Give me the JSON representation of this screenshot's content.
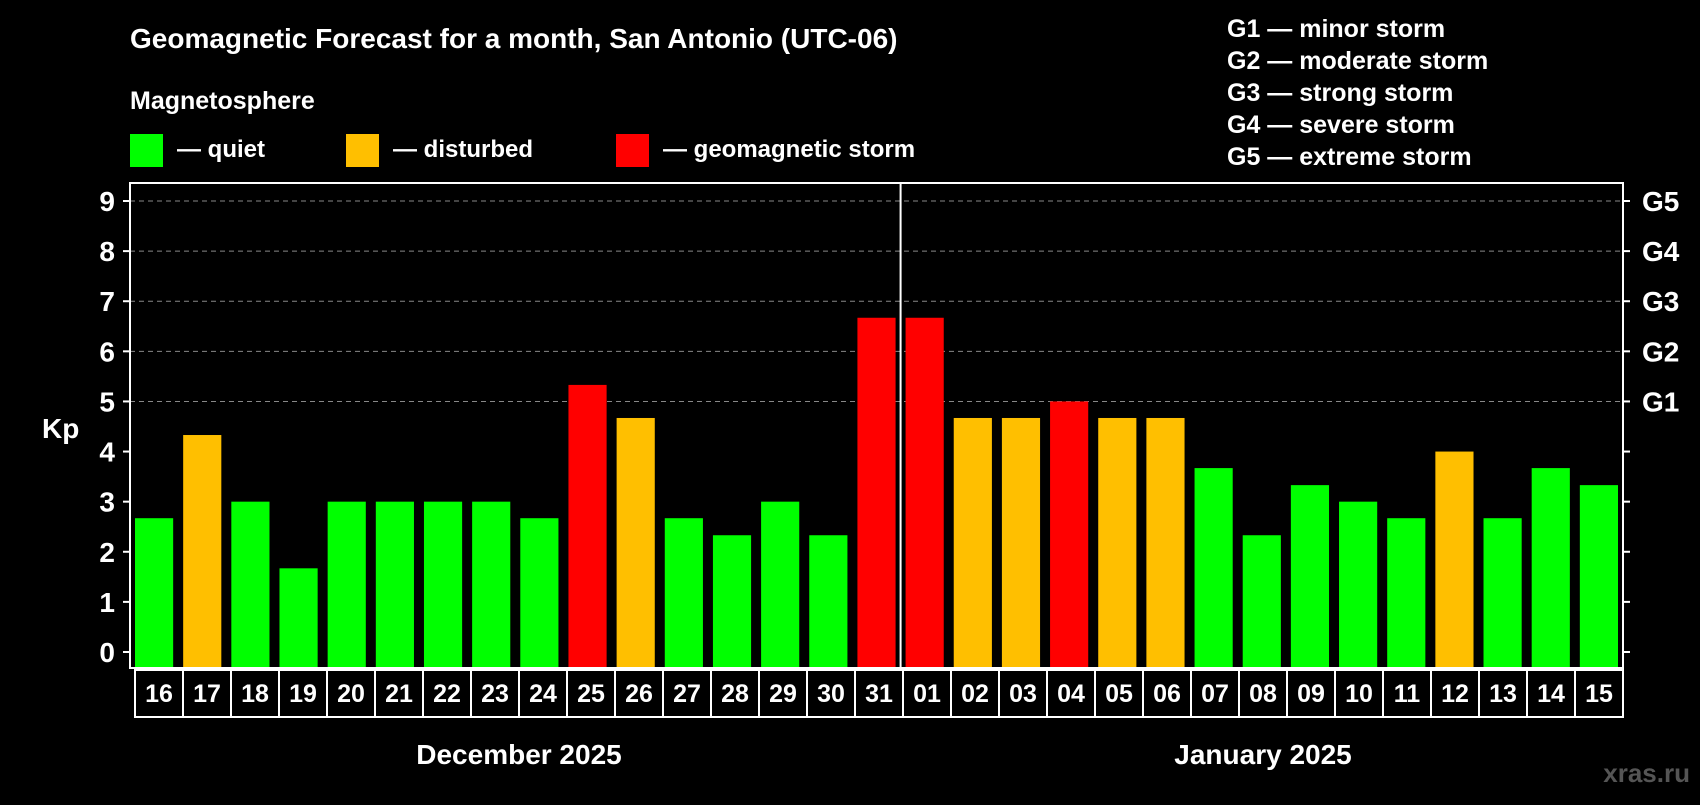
{
  "title": "Geomagnetic Forecast for a month, San Antonio (UTC-06)",
  "legend": {
    "heading": "Magnetosphere",
    "items": [
      {
        "label": "— quiet",
        "color": "#00ff00"
      },
      {
        "label": "— disturbed",
        "color": "#ffbf00"
      },
      {
        "label": "— geomagnetic storm",
        "color": "#ff0000"
      }
    ]
  },
  "storm_scale": [
    "G1 — minor storm",
    "G2 — moderate storm",
    "G3 — strong storm",
    "G4 — severe storm",
    "G5 — extreme storm"
  ],
  "watermark": "xras.ru",
  "chart_data": {
    "type": "bar",
    "ylabel": "Kp",
    "ylim": [
      0,
      9
    ],
    "y_ticks": [
      0,
      1,
      2,
      3,
      4,
      5,
      6,
      7,
      8,
      9
    ],
    "right_axis_labels": [
      {
        "y": 5,
        "label": "G1"
      },
      {
        "y": 6,
        "label": "G2"
      },
      {
        "y": 7,
        "label": "G3"
      },
      {
        "y": 8,
        "label": "G4"
      },
      {
        "y": 9,
        "label": "G5"
      }
    ],
    "grid": "dashed horizontal lines at 5–9",
    "categories": [
      "16",
      "17",
      "18",
      "19",
      "20",
      "21",
      "22",
      "23",
      "24",
      "25",
      "26",
      "27",
      "28",
      "29",
      "30",
      "31",
      "01",
      "02",
      "03",
      "04",
      "05",
      "06",
      "07",
      "08",
      "09",
      "10",
      "11",
      "12",
      "13",
      "14",
      "15"
    ],
    "values": [
      2.67,
      4.33,
      3.0,
      1.67,
      3.0,
      3.0,
      3.0,
      3.0,
      2.67,
      5.33,
      4.67,
      2.67,
      2.33,
      3.0,
      2.33,
      6.67,
      6.67,
      4.67,
      4.67,
      5.0,
      4.67,
      4.67,
      3.67,
      2.33,
      3.33,
      3.0,
      2.67,
      4.0,
      2.67,
      3.67,
      3.33
    ],
    "levels": [
      "quiet",
      "disturbed",
      "quiet",
      "quiet",
      "quiet",
      "quiet",
      "quiet",
      "quiet",
      "quiet",
      "storm",
      "disturbed",
      "quiet",
      "quiet",
      "quiet",
      "quiet",
      "storm",
      "storm",
      "disturbed",
      "disturbed",
      "storm",
      "disturbed",
      "disturbed",
      "quiet",
      "quiet",
      "quiet",
      "quiet",
      "quiet",
      "disturbed",
      "quiet",
      "quiet",
      "quiet"
    ],
    "level_colors": {
      "quiet": "#00ff00",
      "disturbed": "#ffbf00",
      "storm": "#ff0000"
    },
    "month_groups": [
      {
        "label": "December 2025",
        "start": 0,
        "count": 16
      },
      {
        "label": "January 2025",
        "start": 16,
        "count": 15
      }
    ]
  }
}
